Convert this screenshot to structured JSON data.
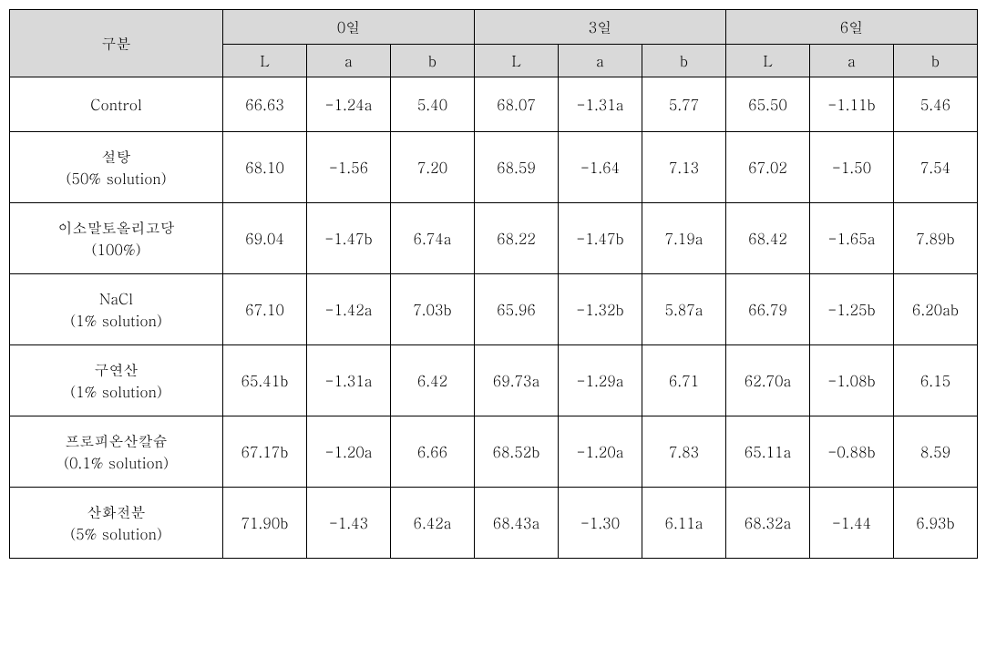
{
  "header": {
    "rowLabel": "구분",
    "groups": [
      "0일",
      "3일",
      "6일"
    ],
    "subcols": [
      "L",
      "a",
      "b"
    ]
  },
  "rows": [
    {
      "label_main": "Control",
      "label_sub": "",
      "height_class": "row-single",
      "cells": [
        "66.63",
        "-1.24a",
        "5.40",
        "68.07",
        "-1.31a",
        "5.77",
        "65.50",
        "-1.11b",
        "5.46"
      ]
    },
    {
      "label_main": "설탕",
      "label_sub": "(50% solution)",
      "height_class": "row-double",
      "cells": [
        "68.10",
        "-1.56",
        "7.20",
        "68.59",
        "-1.64",
        "7.13",
        "67.02",
        "-1.50",
        "7.54"
      ]
    },
    {
      "label_main": "이소말토올리고당",
      "label_sub": "(100%)",
      "height_class": "row-double",
      "cells": [
        "69.04",
        "-1.47b",
        "6.74a",
        "68.22",
        "-1.47b",
        "7.19a",
        "68.42",
        "-1.65a",
        "7.89b"
      ]
    },
    {
      "label_main": "NaCl",
      "label_sub": "(1% solution)",
      "height_class": "row-double",
      "cells": [
        "67.10",
        "-1.42a",
        "7.03b",
        "65.96",
        "-1.32b",
        "5.87a",
        "66.79",
        "-1.25b",
        "6.20ab"
      ]
    },
    {
      "label_main": "구연산",
      "label_sub": "(1% solution)",
      "height_class": "row-double",
      "cells": [
        "65.41b",
        "-1.31a",
        "6.42",
        "69.73a",
        "-1.29a",
        "6.71",
        "62.70a",
        "-1.08b",
        "6.15"
      ]
    },
    {
      "label_main": "프로피온산칼슘",
      "label_sub": "(0.1% solution)",
      "height_class": "row-double",
      "cells": [
        "67.17b",
        "-1.20a",
        "6.66",
        "68.52b",
        "-1.20a",
        "7.83",
        "65.11a",
        "-0.88b",
        "8.59"
      ]
    },
    {
      "label_main": "산화전분",
      "label_sub": "(5% solution)",
      "height_class": "row-double",
      "cells": [
        "71.90b",
        "-1.43",
        "6.42a",
        "68.43a",
        "-1.30",
        "6.11a",
        "68.32a",
        "-1.44",
        "6.93b"
      ]
    }
  ],
  "style": {
    "header_bg": "#d9d9d9",
    "border_color": "#000000",
    "font_size": 16
  }
}
